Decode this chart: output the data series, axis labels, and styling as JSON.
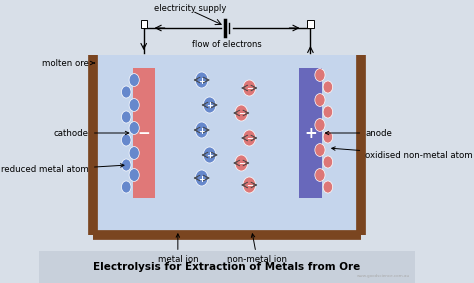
{
  "bg_color": "#d8dfe8",
  "tank_color": "#7a4520",
  "liquid_color": "#c5d5ec",
  "cathode_color": "#e07878",
  "anode_color": "#6868bb",
  "metal_ion_color": "#6688cc",
  "nonmetal_ion_color": "#dd7777",
  "title_bg": "#c8d0db",
  "title": "Electrolysis for Extraction of Metals from Ore",
  "title_fontsize": 7.5,
  "labels": {
    "electricity_supply": "electricity supply",
    "flow_of_electrons": "flow of electrons",
    "molten_ore": "molten ore",
    "cathode": "cathode",
    "reduced_metal_atom": "reduced metal atom",
    "anode": "anode",
    "oxidised_non_metal": "oxidised non-metal atom",
    "metal_ion": "metal ion",
    "non_metal_ion": "non-metal ion"
  }
}
